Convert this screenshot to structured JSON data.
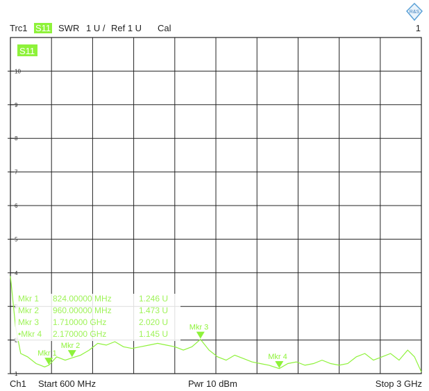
{
  "header": {
    "trace": "Trc1",
    "measurement": "S11",
    "format": "SWR",
    "scale": "1 U /",
    "ref": "Ref 1 U",
    "cal": "Cal",
    "channel_number": "1"
  },
  "logo": {
    "text": "R&S",
    "icon": "rohde-schwarz-logo"
  },
  "trace_label": "S11",
  "y_axis": {
    "ticks": [
      "1",
      "2",
      "3",
      "4",
      "5",
      "6",
      "7",
      "8",
      "9",
      "10"
    ],
    "range": [
      1,
      11
    ]
  },
  "markers": [
    {
      "name": "Mkr 1",
      "freq": "824.00000 MHz",
      "value": "1.246 U",
      "freq_mhz": 824,
      "swr": 1.246
    },
    {
      "name": "Mkr 2",
      "freq": "960.00000 MHz",
      "value": "1.473 U",
      "freq_mhz": 960,
      "swr": 1.473
    },
    {
      "name": "Mkr 3",
      "freq": "1.710000 GHz",
      "value": "2.020 U",
      "freq_mhz": 1710,
      "swr": 2.02
    },
    {
      "name": "•Mkr 4",
      "freq": "2.170000 GHz",
      "value": "1.145 U",
      "freq_mhz": 2170,
      "swr": 1.145
    }
  ],
  "marker_labels": [
    "Mkr 1",
    "Mkr 2",
    "Mkr 3",
    "Mkr 4"
  ],
  "footer": {
    "channel": "Ch1",
    "start": "Start  600 MHz",
    "power": "Pwr  10 dBm",
    "stop": "Stop  3 GHz"
  },
  "chart_data": {
    "type": "line",
    "x_unit": "MHz",
    "xlim": [
      600,
      3000
    ],
    "ylim": [
      1,
      11
    ],
    "grid": true,
    "x": [
      600,
      630,
      660,
      700,
      750,
      800,
      824,
      870,
      920,
      960,
      1010,
      1060,
      1110,
      1160,
      1210,
      1260,
      1310,
      1360,
      1410,
      1460,
      1510,
      1560,
      1610,
      1660,
      1710,
      1760,
      1810,
      1860,
      1910,
      1960,
      2010,
      2060,
      2110,
      2170,
      2220,
      2270,
      2320,
      2370,
      2420,
      2470,
      2520,
      2570,
      2620,
      2670,
      2720,
      2770,
      2820,
      2870,
      2920,
      2960,
      3000
    ],
    "y": [
      3.9,
      2.4,
      1.6,
      1.5,
      1.3,
      1.2,
      1.25,
      1.5,
      1.4,
      1.47,
      1.55,
      1.7,
      1.9,
      1.85,
      1.95,
      1.8,
      1.75,
      1.8,
      1.85,
      1.9,
      1.85,
      1.8,
      1.7,
      1.8,
      2.02,
      1.7,
      1.5,
      1.4,
      1.55,
      1.45,
      1.35,
      1.3,
      1.25,
      1.15,
      1.3,
      1.35,
      1.25,
      1.3,
      1.4,
      1.3,
      1.25,
      1.3,
      1.5,
      1.6,
      1.4,
      1.5,
      1.6,
      1.4,
      1.7,
      1.5,
      1.05
    ]
  }
}
